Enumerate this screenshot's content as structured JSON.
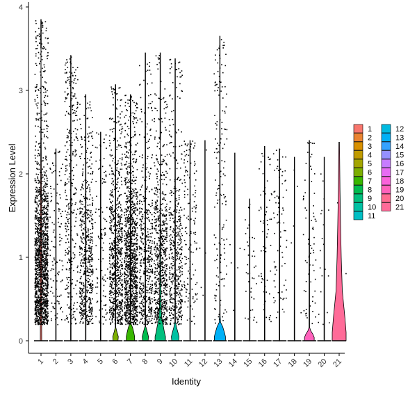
{
  "chart_data": {
    "type": "violin",
    "xlabel": "Identity",
    "ylabel": "Expression Level",
    "ylim": [
      -0.15,
      4.05
    ],
    "yticks": [
      "0",
      "1",
      "2",
      "3",
      "4"
    ],
    "legend_position": "right",
    "categories": [
      "1",
      "2",
      "3",
      "4",
      "5",
      "6",
      "7",
      "8",
      "9",
      "10",
      "11",
      "12",
      "13",
      "14",
      "15",
      "16",
      "17",
      "18",
      "19",
      "20",
      "21"
    ],
    "series": [
      {
        "category": "1",
        "color": "#F8766D",
        "max": 3.85,
        "n_points": 1500,
        "body": [
          [
            0,
            0.1
          ],
          [
            0.3,
            0.09
          ],
          [
            0.6,
            0.09
          ],
          [
            0.9,
            0.1
          ],
          [
            1.2,
            0.09
          ],
          [
            1.6,
            0.07
          ],
          [
            2.0,
            0.05
          ],
          [
            2.5,
            0.03
          ],
          [
            3.0,
            0.015
          ],
          [
            3.5,
            0.005
          ]
        ]
      },
      {
        "category": "2",
        "color": "#EA8331",
        "max": 2.3,
        "n_points": 120,
        "body": []
      },
      {
        "category": "3",
        "color": "#D89000",
        "max": 3.42,
        "n_points": 330,
        "body": []
      },
      {
        "category": "4",
        "color": "#C09B00",
        "max": 2.95,
        "n_points": 560,
        "body": []
      },
      {
        "category": "5",
        "color": "#A3A500",
        "max": 2.5,
        "n_points": 110,
        "body": []
      },
      {
        "category": "6",
        "color": "#7CAE00",
        "max": 3.07,
        "n_points": 760,
        "body": [
          [
            0,
            0.35
          ],
          [
            0.05,
            0.4
          ],
          [
            0.1,
            0.22
          ],
          [
            0.16,
            0.04
          ]
        ]
      },
      {
        "category": "7",
        "color": "#39B600",
        "max": 2.95,
        "n_points": 1100,
        "body": [
          [
            0,
            0.6
          ],
          [
            0.05,
            0.6
          ],
          [
            0.1,
            0.48
          ],
          [
            0.16,
            0.3
          ],
          [
            0.2,
            0.1
          ],
          [
            0.25,
            0.02
          ]
        ]
      },
      {
        "category": "8",
        "color": "#00BB4E",
        "max": 3.45,
        "n_points": 480,
        "body": [
          [
            0,
            0.4
          ],
          [
            0.05,
            0.45
          ],
          [
            0.1,
            0.3
          ],
          [
            0.16,
            0.1
          ]
        ]
      },
      {
        "category": "9",
        "color": "#00BF7D",
        "max": 3.45,
        "n_points": 650,
        "body": [
          [
            0,
            0.75
          ],
          [
            0.05,
            0.75
          ],
          [
            0.1,
            0.6
          ],
          [
            0.17,
            0.45
          ],
          [
            0.25,
            0.25
          ],
          [
            0.35,
            0.15
          ],
          [
            0.5,
            0.1
          ],
          [
            0.8,
            0.06
          ],
          [
            1.2,
            0.04
          ],
          [
            2.0,
            0.02
          ],
          [
            2.4,
            0.005
          ]
        ]
      },
      {
        "category": "10",
        "color": "#00C1A3",
        "max": 3.38,
        "n_points": 460,
        "body": [
          [
            0,
            0.5
          ],
          [
            0.05,
            0.55
          ],
          [
            0.1,
            0.4
          ],
          [
            0.16,
            0.2
          ],
          [
            0.22,
            0.05
          ]
        ]
      },
      {
        "category": "11",
        "color": "#00BFC4",
        "max": 2.4,
        "n_points": 150,
        "body": []
      },
      {
        "category": "12",
        "color": "#00BAE0",
        "max": 2.4,
        "n_points": 5,
        "body": []
      },
      {
        "category": "13",
        "color": "#00B0F6",
        "max": 3.65,
        "n_points": 160,
        "body": [
          [
            0,
            0.8
          ],
          [
            0.05,
            0.8
          ],
          [
            0.1,
            0.65
          ],
          [
            0.17,
            0.4
          ],
          [
            0.22,
            0.1
          ],
          [
            0.3,
            0.04
          ],
          [
            0.5,
            0.03
          ],
          [
            0.8,
            0.01
          ]
        ]
      },
      {
        "category": "14",
        "color": "#35A2FF",
        "max": 2.25,
        "n_points": 5,
        "body": []
      },
      {
        "category": "15",
        "color": "#9590FF",
        "max": 1.7,
        "n_points": 40,
        "body": []
      },
      {
        "category": "16",
        "color": "#C77CFF",
        "max": 2.33,
        "n_points": 60,
        "body": []
      },
      {
        "category": "17",
        "color": "#E76BF3",
        "max": 2.3,
        "n_points": 80,
        "body": []
      },
      {
        "category": "18",
        "color": "#FA62DB",
        "max": 2.2,
        "n_points": 5,
        "body": []
      },
      {
        "category": "19",
        "color": "#FF62BC",
        "max": 2.4,
        "n_points": 70,
        "body": [
          [
            0,
            0.7
          ],
          [
            0.04,
            0.7
          ],
          [
            0.08,
            0.5
          ],
          [
            0.12,
            0.2
          ],
          [
            0.16,
            0.04
          ]
        ]
      },
      {
        "category": "20",
        "color": "#FF6C91",
        "max": 2.2,
        "n_points": 20,
        "body": []
      },
      {
        "category": "21",
        "color": "#FF6B98",
        "max": 2.38,
        "n_points": 2,
        "body": [
          [
            0,
            1.0
          ],
          [
            0.1,
            1.0
          ],
          [
            0.3,
            0.8
          ],
          [
            0.6,
            0.45
          ],
          [
            1.0,
            0.3
          ],
          [
            1.4,
            0.2
          ],
          [
            1.8,
            0.12
          ],
          [
            2.2,
            0.07
          ],
          [
            2.38,
            0.04
          ]
        ]
      }
    ]
  }
}
